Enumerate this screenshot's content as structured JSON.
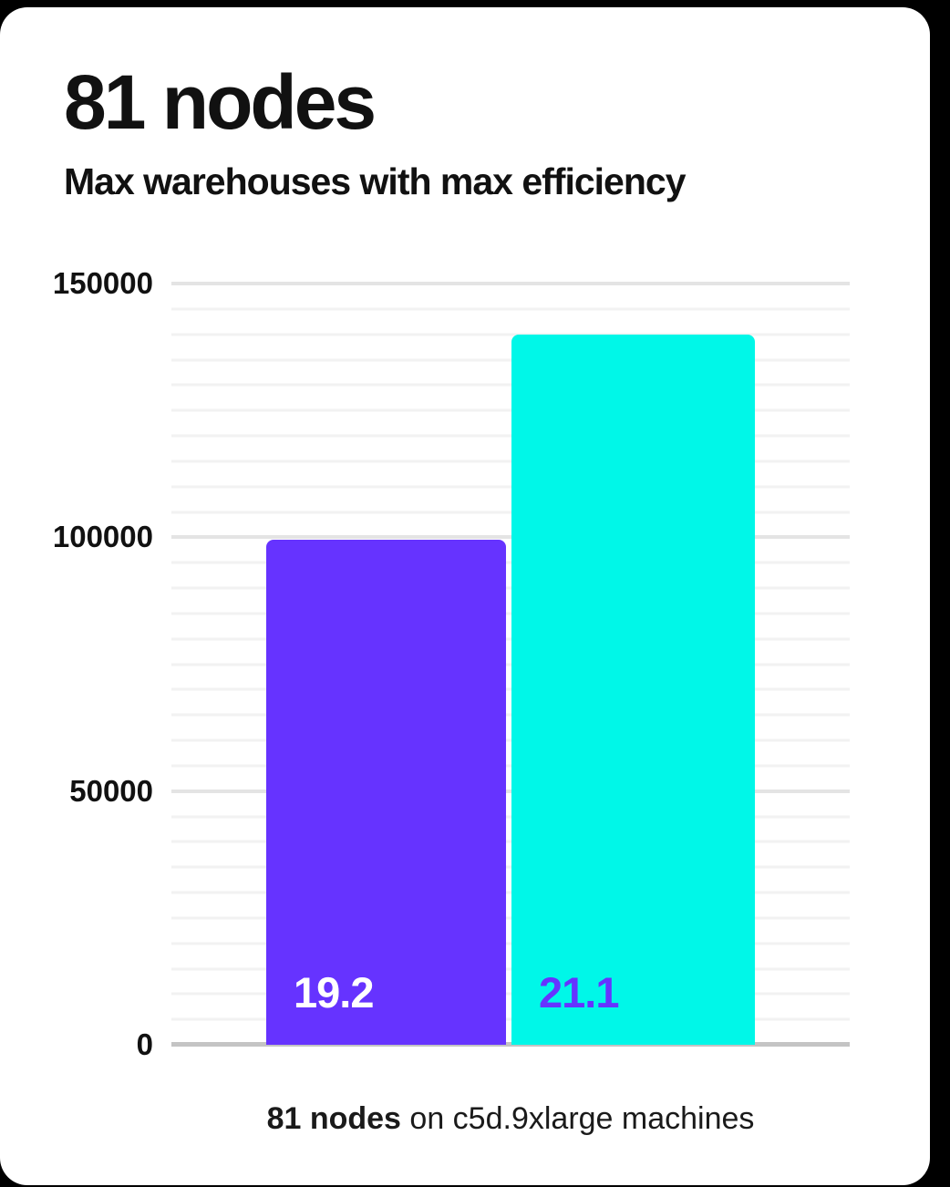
{
  "card": {
    "title": "81 nodes",
    "subtitle": "Max warehouses with max efficiency"
  },
  "caption": {
    "bold": "81 nodes",
    "rest": " on c5d.9xlarge machines"
  },
  "colors": {
    "background": "#000000",
    "card": "#ffffff",
    "text": "#111111",
    "purple_bar": "#6633ff",
    "cyan_bar": "#00f7e8",
    "major_gridline": "#e4e4e4",
    "minor_gridline": "#f2f2f2",
    "baseline": "#c4c4c4"
  },
  "chart_data": {
    "type": "bar",
    "title": "81 nodes",
    "subtitle": "Max warehouses with max efficiency",
    "categories": [
      "19.2",
      "21.1"
    ],
    "values": [
      99500,
      140000
    ],
    "bar_colors": [
      "#6633ff",
      "#00f7e8"
    ],
    "bar_label_colors": [
      "#ffffff",
      "#6633ff"
    ],
    "bar_value_labels_inside_bottom": true,
    "xlabel": "",
    "ylabel": "",
    "ylim": [
      0,
      150000
    ],
    "y_ticks": [
      "150000",
      "100000",
      "50000",
      "0"
    ],
    "y_tick_values": [
      150000,
      100000,
      50000,
      0
    ],
    "minor_gridline_step": 5000,
    "major_gridline_step": 50000,
    "grid": "horizontal minor gridlines every 5000, major every 50000",
    "legend": "none",
    "caption": "81 nodes on c5d.9xlarge machines"
  }
}
